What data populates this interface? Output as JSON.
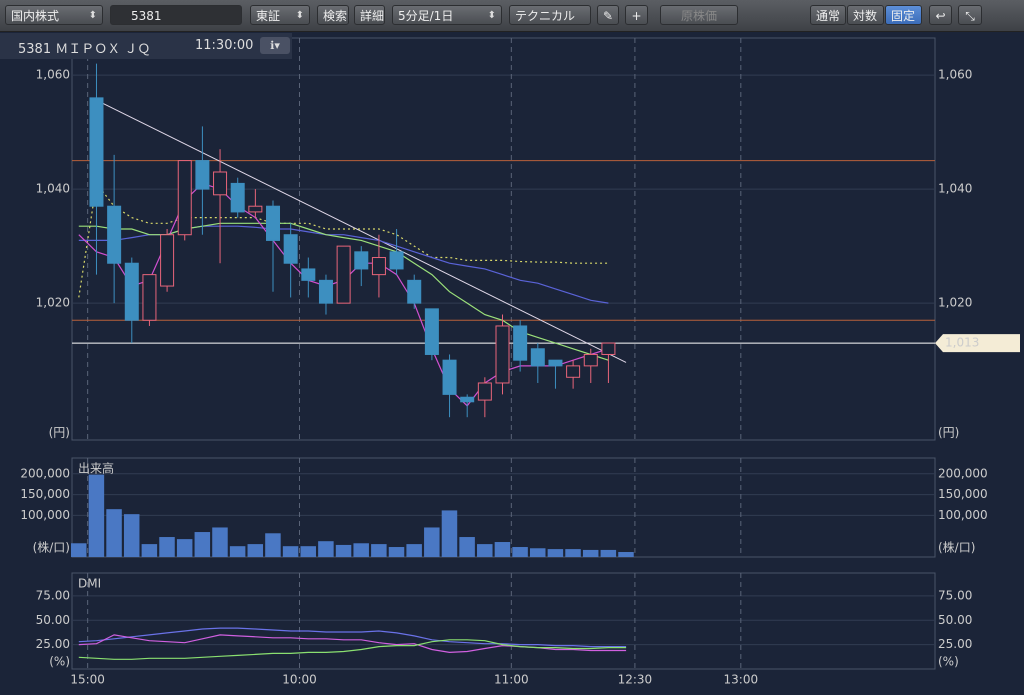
{
  "toolbar": {
    "market": "国内株式",
    "search": "5381",
    "exchange": "東証",
    "search_button": "検索",
    "detail_button": "詳細",
    "interval": "5分足/1日",
    "technical": "テクニカル",
    "original_price": "原株価",
    "scale_normal": "通常",
    "scale_log": "対数",
    "scale_fixed": "固定"
  },
  "header": {
    "symbol": "5381 ＭＩＰＯＸ ＪＱ",
    "time": "11:30:00"
  },
  "time_axis": {
    "xlim": [
      0,
      49
    ],
    "xticks": [
      {
        "value": 1,
        "label": "15:00"
      },
      {
        "value": 13,
        "label": "10:00"
      },
      {
        "value": 25,
        "label": "11:00"
      },
      {
        "value": 32,
        "label": "12:30"
      },
      {
        "value": 38,
        "label": "13:00"
      }
    ]
  },
  "chart_data": [
    {
      "type": "candlestick",
      "unit": "(円)",
      "ylim": [
        996,
        1066.5
      ],
      "yticks": [
        {
          "value": 1060,
          "label": "1,060"
        },
        {
          "value": 1040,
          "label": "1,040"
        },
        {
          "value": 1020,
          "label": "1,020"
        }
      ],
      "up_color": "#e8657a",
      "down_color": "#3d8fc0",
      "open": [
        null,
        1056,
        1037,
        1027,
        1017,
        1023,
        1032,
        1045,
        1039,
        1041,
        1036,
        1037,
        1032,
        1026,
        1024,
        1020,
        1029,
        1025,
        1029,
        1024,
        1019,
        1010,
        1003.5,
        1003,
        1006,
        1016,
        1012,
        1010,
        1007,
        1009,
        1011,
        null
      ],
      "high": [
        null,
        1062,
        1046,
        1028,
        1025,
        1033,
        1045,
        1051,
        1047,
        1042,
        1040,
        1038,
        1034,
        1028,
        1025,
        1030,
        1030,
        1032,
        1033,
        1025,
        1019,
        1011,
        1004,
        1007,
        1018,
        1017,
        1013,
        1010,
        1010,
        1012,
        1013,
        null
      ],
      "low": [
        null,
        1025,
        1020,
        1013,
        1016,
        1022,
        1031,
        1032,
        1027,
        1035,
        1035,
        1022,
        1021,
        1021,
        1018,
        1020,
        1023,
        1021,
        1025,
        1019,
        1010,
        1000,
        1000,
        1000,
        1004,
        1008,
        1006,
        1005,
        1005,
        1006,
        1006,
        null
      ],
      "close": [
        null,
        1037,
        1027,
        1017,
        1025,
        1032,
        1045,
        1040,
        1043,
        1036,
        1037,
        1031,
        1027,
        1024,
        1020,
        1030,
        1026,
        1028,
        1026,
        1020,
        1011,
        1004,
        1002.7,
        1006,
        1016,
        1010,
        1009,
        1009,
        1009,
        1011,
        1013,
        null
      ],
      "lines": [
        {
          "color": "#d8d86a",
          "style": "dotted",
          "values": [
            1021,
            1041,
            1037,
            1035,
            1034,
            1034,
            1035,
            1035,
            1035,
            1035,
            1035,
            1034,
            1034,
            1034,
            1033,
            1033,
            1033,
            1033,
            1032,
            1030,
            1028,
            1028,
            1027.5,
            1027.5,
            1027.5,
            1027.3,
            1027.2,
            1027.2,
            1027,
            1027,
            1027,
            null
          ]
        },
        {
          "color": "#5a63d8",
          "style": "solid",
          "values": [
            1031,
            1031,
            1031,
            1031.5,
            1032,
            1032,
            1033,
            1033.5,
            1033.5,
            1033.5,
            1033.3,
            1033,
            1033,
            1032.5,
            1032,
            1032,
            1031.5,
            1031,
            1030,
            1029,
            1028,
            1027,
            1026.5,
            1026,
            1025,
            1024,
            1023.5,
            1022.5,
            1021.5,
            1020.5,
            1020,
            null
          ]
        },
        {
          "color": "#9be07a",
          "style": "solid",
          "values": [
            1033.5,
            1033.5,
            1033,
            1033,
            1032,
            1032,
            1033,
            1033.5,
            1034,
            1034,
            1034,
            1034,
            1034,
            1033,
            1032,
            1031.5,
            1031,
            1030,
            1029,
            1027,
            1025,
            1022,
            1020,
            1018,
            1017,
            1015,
            1014,
            1013,
            1012,
            1011,
            1010,
            null
          ]
        },
        {
          "color": "#d050d0",
          "style": "solid",
          "values": [
            1032,
            1029,
            1028,
            1023,
            1024,
            1031,
            1038,
            1041,
            1040,
            1037,
            1035,
            1031,
            1027,
            1024,
            1023,
            1024,
            1027,
            1027,
            1025,
            1020,
            1012,
            1005,
            1002,
            1006,
            1008,
            1009,
            1009,
            1009,
            1010,
            1011,
            1012,
            null
          ]
        }
      ],
      "hlines": [
        {
          "value": 1045,
          "color": "#b8603a"
        },
        {
          "value": 1017,
          "color": "#b8603a"
        },
        {
          "value": 1013,
          "label": "1,013",
          "color": "#ffffff"
        }
      ],
      "trendline": {
        "x": [
          1,
          31
        ],
        "y": [
          1055.6,
          1009.6
        ],
        "color": "#e0d8e8"
      }
    },
    {
      "type": "bar",
      "title": "出来高",
      "unit": "(株/口)",
      "ylim": [
        0,
        238000
      ],
      "color": "#4a78c4",
      "yticks": [
        {
          "value": 100000,
          "label": "100,000"
        },
        {
          "value": 150000,
          "label": "150,000"
        },
        {
          "value": 200000,
          "label": "200,000"
        }
      ],
      "values": [
        33000,
        198000,
        115000,
        103000,
        31000,
        48000,
        43000,
        60000,
        71000,
        26000,
        31000,
        57000,
        26000,
        26000,
        38000,
        29000,
        33000,
        31000,
        24000,
        31000,
        71000,
        112000,
        48000,
        31000,
        36000,
        24000,
        21000,
        19000,
        19000,
        17000,
        17000,
        12000
      ]
    },
    {
      "type": "line",
      "title": "DMI",
      "unit": "(%)",
      "ylim": [
        0,
        98.5
      ],
      "yticks": [
        {
          "value": 25,
          "label": "25.00"
        },
        {
          "value": 50,
          "label": "50.00"
        },
        {
          "value": 75,
          "label": "75.00"
        }
      ],
      "lines": [
        {
          "color": "#6a72e8",
          "style": "solid",
          "values": [
            28,
            29,
            31,
            33,
            35,
            37,
            39,
            41,
            42,
            42,
            41,
            40,
            39,
            39,
            38,
            38,
            38,
            39,
            37,
            34,
            30,
            28,
            27,
            26,
            26,
            25,
            25,
            24,
            24,
            23,
            23,
            23
          ]
        },
        {
          "color": "#d060e0",
          "style": "solid",
          "values": [
            25,
            26,
            35,
            32,
            29,
            28,
            27,
            31,
            35,
            34,
            33,
            32,
            32,
            31,
            31,
            30,
            30,
            27,
            25,
            26,
            20,
            17,
            18,
            21,
            24,
            23,
            22,
            20,
            20,
            19,
            19,
            19
          ]
        },
        {
          "color": "#8ae070",
          "style": "solid",
          "values": [
            12,
            11,
            10,
            10,
            11,
            11,
            11,
            12,
            13,
            14,
            15,
            16,
            16,
            17,
            17,
            18,
            20,
            23,
            24,
            24,
            28,
            30,
            30,
            29,
            25,
            23,
            22,
            22,
            21,
            21,
            22,
            22
          ]
        }
      ]
    }
  ]
}
